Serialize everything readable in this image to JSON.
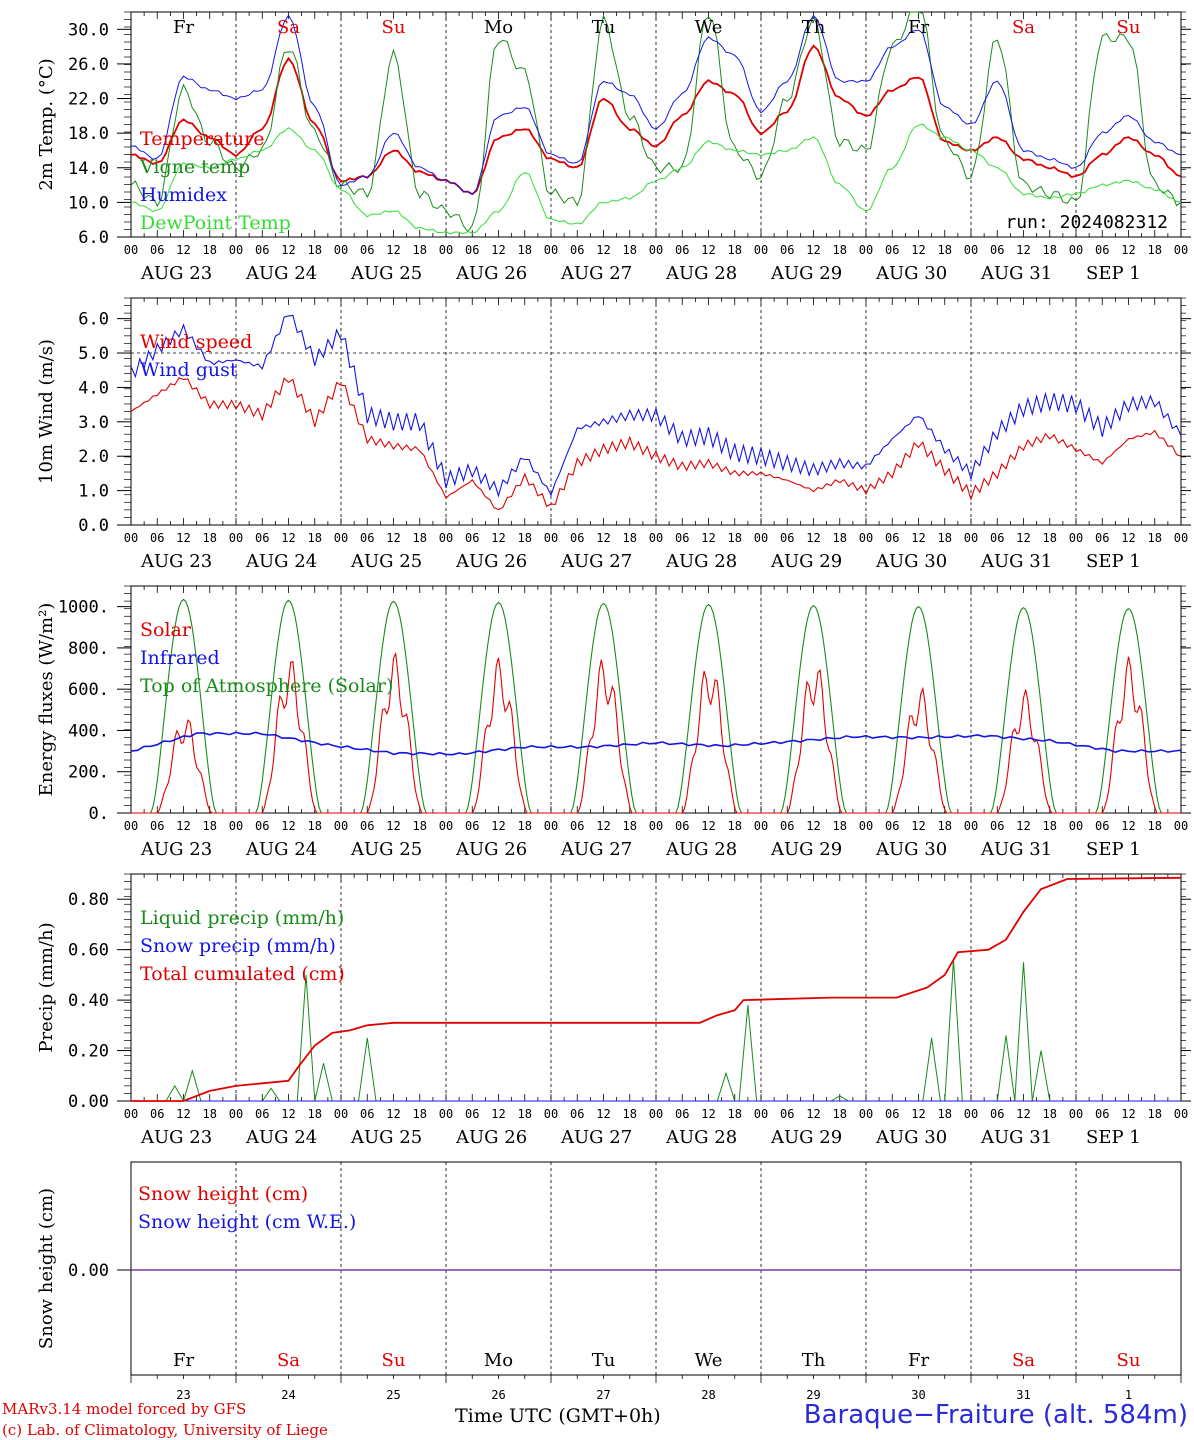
{
  "footer": {
    "credit_line1": "MARv3.14 model forced by GFS",
    "credit_line2": "(c) Lab. of Climatology, University of Liege",
    "xlabel": "Time UTC (GMT+0h)",
    "station": "Baraque−Fraiture (alt. 584m)"
  },
  "colors": {
    "red": "#e00000",
    "green": "#1a8a1a",
    "blue": "#1515e6",
    "lightgreen": "#33dd33",
    "purple": "#7a3aa0",
    "black": "#000000"
  },
  "chart_data": [
    {
      "type": "line",
      "ylabel": "2m Temp. (°C)",
      "ylim": [
        6,
        32
      ],
      "yticks": [
        "6.0",
        "10.0",
        "14.0",
        "18.0",
        "22.0",
        "26.0",
        "30.0"
      ],
      "run_label": "run: 2024082312",
      "x_hours": [
        0,
        6,
        12,
        18,
        24,
        30,
        36,
        42,
        48,
        54,
        60,
        66,
        72,
        78,
        84,
        90,
        96,
        102,
        108,
        114,
        120,
        126,
        132,
        138,
        144,
        150,
        156,
        162,
        168,
        174,
        180,
        186,
        192,
        198,
        204,
        210,
        216,
        222,
        228,
        234,
        240
      ],
      "series": [
        {
          "name": "Temperature",
          "color": "red",
          "values": [
            15.5,
            14.5,
            19.5,
            17.5,
            15.5,
            18.5,
            26.5,
            19,
            12.5,
            13,
            16,
            13.5,
            12.5,
            11,
            17.5,
            18.5,
            15,
            14,
            22,
            18.5,
            16.5,
            20,
            24,
            22.5,
            18,
            20.5,
            28,
            22,
            20,
            23,
            24.5,
            17,
            16,
            17.5,
            15,
            14,
            13,
            15.5,
            17.5,
            15.5,
            13
          ]
        },
        {
          "name": "Vigne temp",
          "color": "green",
          "values": [
            12,
            10,
            23,
            17,
            14,
            16,
            28,
            18,
            12,
            11,
            27,
            11,
            9,
            7,
            29,
            25,
            11,
            10,
            31,
            20,
            14,
            14,
            32,
            16,
            13,
            22,
            31,
            17,
            16,
            28,
            33,
            17,
            13,
            29,
            12,
            11,
            10,
            29,
            29,
            12,
            10
          ]
        },
        {
          "name": "Humidex",
          "color": "blue",
          "values": [
            16.5,
            15,
            24.5,
            23,
            22,
            23,
            31.5,
            21,
            12,
            13,
            18,
            14,
            12.5,
            11,
            20,
            21,
            15.5,
            14.5,
            24,
            22.5,
            18.5,
            22.5,
            29,
            27,
            20.5,
            24,
            31.5,
            24,
            24,
            28,
            30,
            21,
            19,
            24,
            16,
            15,
            14,
            18,
            20,
            17,
            15.5
          ]
        },
        {
          "name": "DewPoint Temp",
          "color": "lightgreen",
          "values": [
            10,
            9,
            14.5,
            14,
            15,
            16,
            18.5,
            16,
            11.5,
            8.5,
            9,
            7,
            6.5,
            6.5,
            9,
            13.5,
            8,
            7.5,
            10,
            10.5,
            12.5,
            14,
            17,
            16,
            15.5,
            16,
            17.5,
            12,
            9,
            14,
            19,
            17.5,
            16,
            14,
            11,
            10.5,
            11,
            12,
            12.5,
            11.5,
            10
          ]
        }
      ],
      "legend": [
        "Temperature",
        "Vigne temp",
        "Humidex",
        "DewPoint Temp"
      ],
      "legend_colors": [
        "red",
        "green",
        "blue",
        "lightgreen"
      ],
      "weekday_labels": [
        "Fr",
        "Sa",
        "Su",
        "Mo",
        "Tu",
        "We",
        "Th",
        "Fr",
        "Sa",
        "Su"
      ],
      "weekday_colors": [
        "black",
        "red",
        "red",
        "black",
        "black",
        "black",
        "black",
        "black",
        "red",
        "red"
      ]
    },
    {
      "type": "line",
      "ylabel": "10m Wind (m/s)",
      "ylim": [
        0,
        6.6
      ],
      "yticks": [
        "0.0",
        "1.0",
        "2.0",
        "3.0",
        "4.0",
        "5.0",
        "6.0"
      ],
      "hline": 5.0,
      "x_hours": [
        0,
        6,
        12,
        18,
        24,
        30,
        36,
        42,
        48,
        54,
        60,
        66,
        72,
        78,
        84,
        90,
        96,
        102,
        108,
        114,
        120,
        126,
        132,
        138,
        144,
        150,
        156,
        162,
        168,
        174,
        180,
        186,
        192,
        198,
        204,
        210,
        216,
        222,
        228,
        234,
        240
      ],
      "series": [
        {
          "name": "Wind speed",
          "color": "red",
          "values": [
            3.3,
            3.8,
            4.3,
            3.5,
            3.5,
            3.2,
            4.3,
            3.0,
            4.2,
            2.5,
            2.3,
            2.2,
            0.8,
            1.3,
            0.4,
            1.4,
            0.5,
            1.8,
            2.2,
            2.4,
            2.0,
            1.7,
            1.8,
            1.5,
            1.5,
            1.3,
            1.0,
            1.3,
            1.0,
            1.5,
            2.4,
            1.6,
            0.9,
            1.5,
            2.3,
            2.6,
            2.2,
            1.8,
            2.5,
            2.7,
            2.0
          ]
        },
        {
          "name": "Wind gust",
          "color": "blue",
          "values": [
            4.4,
            5.1,
            5.7,
            4.7,
            4.8,
            4.6,
            6.2,
            4.8,
            5.6,
            3.2,
            3.0,
            3.0,
            1.3,
            1.6,
            1.0,
            2.0,
            0.9,
            2.8,
            3.0,
            3.2,
            3.2,
            2.5,
            2.6,
            2.1,
            2.0,
            1.8,
            1.6,
            1.8,
            1.7,
            2.5,
            3.2,
            2.2,
            1.5,
            2.7,
            3.4,
            3.6,
            3.5,
            2.8,
            3.5,
            3.6,
            2.6
          ]
        }
      ],
      "legend": [
        "Wind speed",
        "Wind gust"
      ],
      "legend_colors": [
        "red",
        "blue"
      ]
    },
    {
      "type": "line",
      "ylabel": "Energy fluxes (W/m²)",
      "ylim": [
        0,
        1100
      ],
      "yticks": [
        "0.",
        "200.",
        "400.",
        "600.",
        "800.",
        "1000."
      ],
      "series": [
        {
          "name": "Solar",
          "color": "red",
          "day_peaks": [
            480,
            760,
            780,
            760,
            770,
            750,
            750,
            620,
            600,
            760
          ]
        },
        {
          "name": "Infrared",
          "color": "blue",
          "values": [
            300,
            385,
            385,
            330,
            290,
            285,
            320,
            320,
            340,
            325,
            345,
            370,
            365,
            375,
            350,
            300,
            300
          ]
        },
        {
          "name": "Top of Atmosphere (Solar)",
          "color": "green",
          "day_peaks": [
            1035,
            1030,
            1025,
            1020,
            1015,
            1010,
            1005,
            1000,
            995,
            990
          ]
        }
      ],
      "legend": [
        "Solar",
        "Infrared",
        "Top of Atmosphere (Solar)"
      ],
      "legend_colors": [
        "red",
        "blue",
        "green"
      ]
    },
    {
      "type": "line",
      "ylabel": "Precip (mm/h)",
      "ylim": [
        0,
        0.9
      ],
      "yticks": [
        "0.00",
        "0.20",
        "0.40",
        "0.60",
        "0.80"
      ],
      "series": [
        {
          "name": "Liquid precip (mm/h)",
          "color": "green"
        },
        {
          "name": "Snow precip (mm/h)",
          "color": "blue"
        },
        {
          "name": "Total cumulated (cm)",
          "color": "red"
        }
      ],
      "cumulated_points": [
        [
          0,
          0
        ],
        [
          12,
          0
        ],
        [
          18,
          0.04
        ],
        [
          24,
          0.06
        ],
        [
          30,
          0.07
        ],
        [
          36,
          0.08
        ],
        [
          38,
          0.13
        ],
        [
          42,
          0.22
        ],
        [
          46,
          0.27
        ],
        [
          50,
          0.28
        ],
        [
          54,
          0.3
        ],
        [
          60,
          0.31
        ],
        [
          100,
          0.31
        ],
        [
          130,
          0.31
        ],
        [
          134,
          0.34
        ],
        [
          138,
          0.36
        ],
        [
          140,
          0.4
        ],
        [
          160,
          0.41
        ],
        [
          175,
          0.41
        ],
        [
          182,
          0.45
        ],
        [
          186,
          0.5
        ],
        [
          189,
          0.59
        ],
        [
          196,
          0.6
        ],
        [
          200,
          0.64
        ],
        [
          204,
          0.75
        ],
        [
          208,
          0.84
        ],
        [
          214,
          0.88
        ],
        [
          240,
          0.885
        ]
      ],
      "liquid_spikes": [
        [
          10,
          0.06
        ],
        [
          14,
          0.12
        ],
        [
          32,
          0.05
        ],
        [
          40,
          0.5
        ],
        [
          44,
          0.15
        ],
        [
          54,
          0.25
        ],
        [
          136,
          0.11
        ],
        [
          141,
          0.38
        ],
        [
          183,
          0.25
        ],
        [
          188,
          0.56
        ],
        [
          200,
          0.26
        ],
        [
          204,
          0.55
        ],
        [
          208,
          0.2
        ],
        [
          162,
          0.02
        ]
      ],
      "legend": [
        "Liquid precip (mm/h)",
        "Snow precip (mm/h)",
        "Total cumulated (cm)"
      ],
      "legend_colors": [
        "green",
        "blue",
        "red"
      ]
    },
    {
      "type": "line",
      "ylabel": "Snow height (cm)",
      "yticks": [
        "0.00"
      ],
      "series": [
        {
          "name": "Snow height (cm)",
          "color": "red",
          "values": [
            0,
            0
          ]
        },
        {
          "name": "Snow height (cm W.E.)",
          "color": "blue",
          "values": [
            0,
            0
          ]
        }
      ],
      "legend": [
        "Snow height (cm)",
        "Snow height (cm W.E.)"
      ],
      "legend_colors": [
        "red",
        "blue"
      ],
      "weekday_labels": [
        "Fr",
        "Sa",
        "Su",
        "Mo",
        "Tu",
        "We",
        "Th",
        "Fr",
        "Sa",
        "Su"
      ],
      "weekday_colors": [
        "black",
        "red",
        "red",
        "black",
        "black",
        "black",
        "black",
        "black",
        "red",
        "red"
      ],
      "daynum_labels": [
        "23",
        "24",
        "25",
        "26",
        "27",
        "28",
        "29",
        "30",
        "31",
        "1"
      ]
    }
  ],
  "x_axis": {
    "hour_labels": [
      "00",
      "06",
      "12",
      "18"
    ],
    "date_labels": [
      "AUG 23",
      "AUG 24",
      "AUG 25",
      "AUG 26",
      "AUG 27",
      "AUG 28",
      "AUG 29",
      "AUG 30",
      "AUG 31",
      "SEP  1"
    ]
  }
}
